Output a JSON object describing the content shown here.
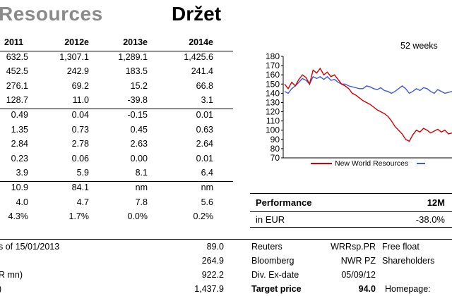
{
  "header": {
    "title_partial": "Resources",
    "rating": "Držet"
  },
  "fin_table": {
    "columns": [
      "2011",
      "2012e",
      "2013e",
      "2014e"
    ],
    "rows": [
      [
        "632.5",
        "1,307.1",
        "1,289.1",
        "1,425.6"
      ],
      [
        "452.5",
        "242.9",
        "183.5",
        "241.4"
      ],
      [
        "276.1",
        "69.2",
        "15.2",
        "66.8"
      ],
      [
        "128.7",
        "11.0",
        "-39.8",
        "3.1"
      ],
      [
        "0.49",
        "0.04",
        "-0.15",
        "0.01"
      ],
      [
        "1.35",
        "0.73",
        "0.45",
        "0.63"
      ],
      [
        "2.84",
        "2.78",
        "2.63",
        "2.64"
      ],
      [
        "0.23",
        "0.06",
        "0.00",
        "0.01"
      ],
      [
        "3.9",
        "5.9",
        "8.1",
        "6.4"
      ],
      [
        "10.9",
        "84.1",
        "nm",
        "nm"
      ],
      [
        "4.0",
        "4.7",
        "7.8",
        "5.6"
      ],
      [
        "4.3%",
        "1.7%",
        "0.0%",
        "0.2%"
      ]
    ]
  },
  "bottom_left": {
    "rows": [
      {
        "label": "s of 15/01/2013",
        "value": "89.0"
      },
      {
        "label": "",
        "value": "264.9"
      },
      {
        "label": "R mn)",
        "value": "922.2"
      },
      {
        "label": ")",
        "value": "1,437.9"
      }
    ]
  },
  "chart_data": {
    "type": "line",
    "title": "52 weeks",
    "ylim": [
      70,
      180
    ],
    "yticks": [
      "180",
      "170",
      "160",
      "150",
      "140",
      "130",
      "120",
      "110",
      "100",
      "90",
      "80",
      "70"
    ],
    "series": [
      {
        "name": "New World Resources",
        "color": "#d40000",
        "values": [
          150,
          145,
          152,
          148,
          155,
          160,
          157,
          150,
          165,
          162,
          167,
          160,
          163,
          158,
          160,
          155,
          150,
          148,
          145,
          140,
          138,
          135,
          132,
          130,
          128,
          125,
          122,
          120,
          118,
          115,
          110,
          104,
          100,
          96,
          90,
          88,
          95,
          100,
          98,
          102,
          100,
          97,
          99,
          101,
          98,
          100,
          96,
          97
        ]
      },
      {
        "name": "",
        "color": "#3b5bd6",
        "values": [
          142,
          140,
          145,
          148,
          152,
          156,
          154,
          150,
          158,
          156,
          158,
          155,
          158,
          154,
          155,
          152,
          150,
          150,
          148,
          147,
          146,
          145,
          145,
          148,
          147,
          145,
          144,
          146,
          143,
          142,
          140,
          142,
          145,
          148,
          145,
          140,
          142,
          145,
          143,
          146,
          145,
          142,
          140,
          144,
          142,
          140,
          141,
          142
        ]
      }
    ],
    "grid": false,
    "legend": "bottom"
  },
  "performance": {
    "label": "Performance",
    "period": "12M",
    "currency_label": "in EUR",
    "value": "-38.0%"
  },
  "info": {
    "rows": [
      {
        "k1": "Reuters",
        "v1": "WRRsp.PR",
        "k2": "Free float"
      },
      {
        "k1": "Bloomberg",
        "v1": "NWR PZ",
        "k2": "Shareholders"
      },
      {
        "k1": "Div. Ex-date",
        "v1": "05/09/12",
        "k2": ""
      },
      {
        "k1": "Target price",
        "v1": "94.0",
        "k2": "Homepage:"
      }
    ]
  }
}
